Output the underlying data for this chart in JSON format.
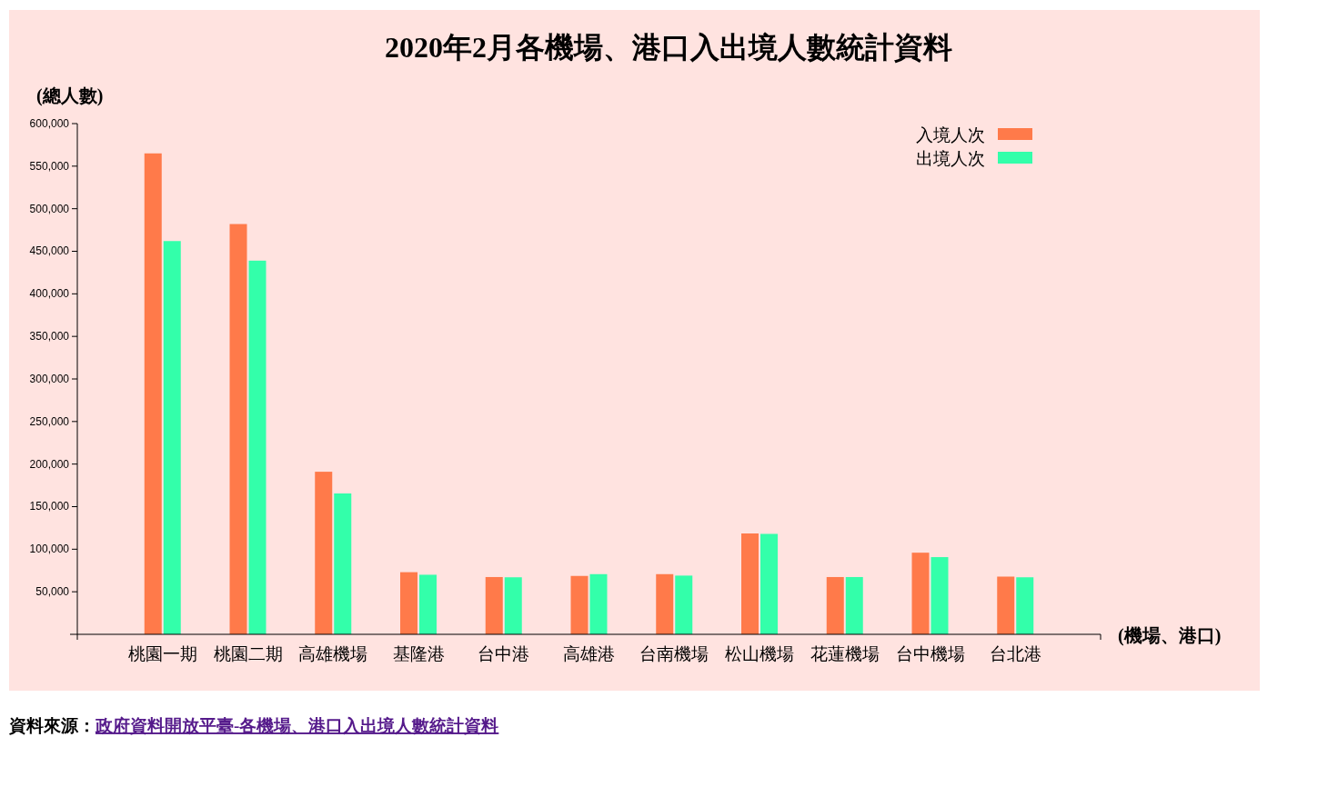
{
  "chart_data": {
    "type": "bar",
    "title": "2020年2月各機場、港口入出境人數統計資料",
    "ylabel": "(總人數)",
    "xlabel": "(機場、港口)",
    "categories": [
      "桃園一期",
      "桃園二期",
      "高雄機場",
      "基隆港",
      "台中港",
      "高雄港",
      "台南機場",
      "松山機場",
      "花蓮機場",
      "台中機場",
      "台北港"
    ],
    "series": [
      {
        "name": "入境人次",
        "color": "#ff7a4a",
        "values": [
          565000,
          482000,
          191000,
          73000,
          67300,
          68600,
          70700,
          118500,
          67300,
          95900,
          67800
        ]
      },
      {
        "name": "出境人次",
        "color": "#33ffaa",
        "values": [
          462000,
          439000,
          165500,
          70000,
          67000,
          70700,
          69000,
          118000,
          67300,
          90700,
          67000
        ]
      }
    ],
    "ylim": [
      0,
      600000
    ],
    "yticks": [
      {
        "value": 50000,
        "label": "50,000"
      },
      {
        "value": 100000,
        "label": "100,000"
      },
      {
        "value": 150000,
        "label": "150,000"
      },
      {
        "value": 200000,
        "label": "200,000"
      },
      {
        "value": 250000,
        "label": "250,000"
      },
      {
        "value": 300000,
        "label": "300,000"
      },
      {
        "value": 350000,
        "label": "350,000"
      },
      {
        "value": 400000,
        "label": "400,000"
      },
      {
        "value": 450000,
        "label": "450,000"
      },
      {
        "value": 500000,
        "label": "500,000"
      },
      {
        "value": 550000,
        "label": "550,000"
      },
      {
        "value": 600000,
        "label": "600,000"
      }
    ],
    "legend": "top right",
    "annotations": [
      "資料來源：",
      "政府資料開放平臺-各機場、港口入出境人數統計資料"
    ]
  }
}
